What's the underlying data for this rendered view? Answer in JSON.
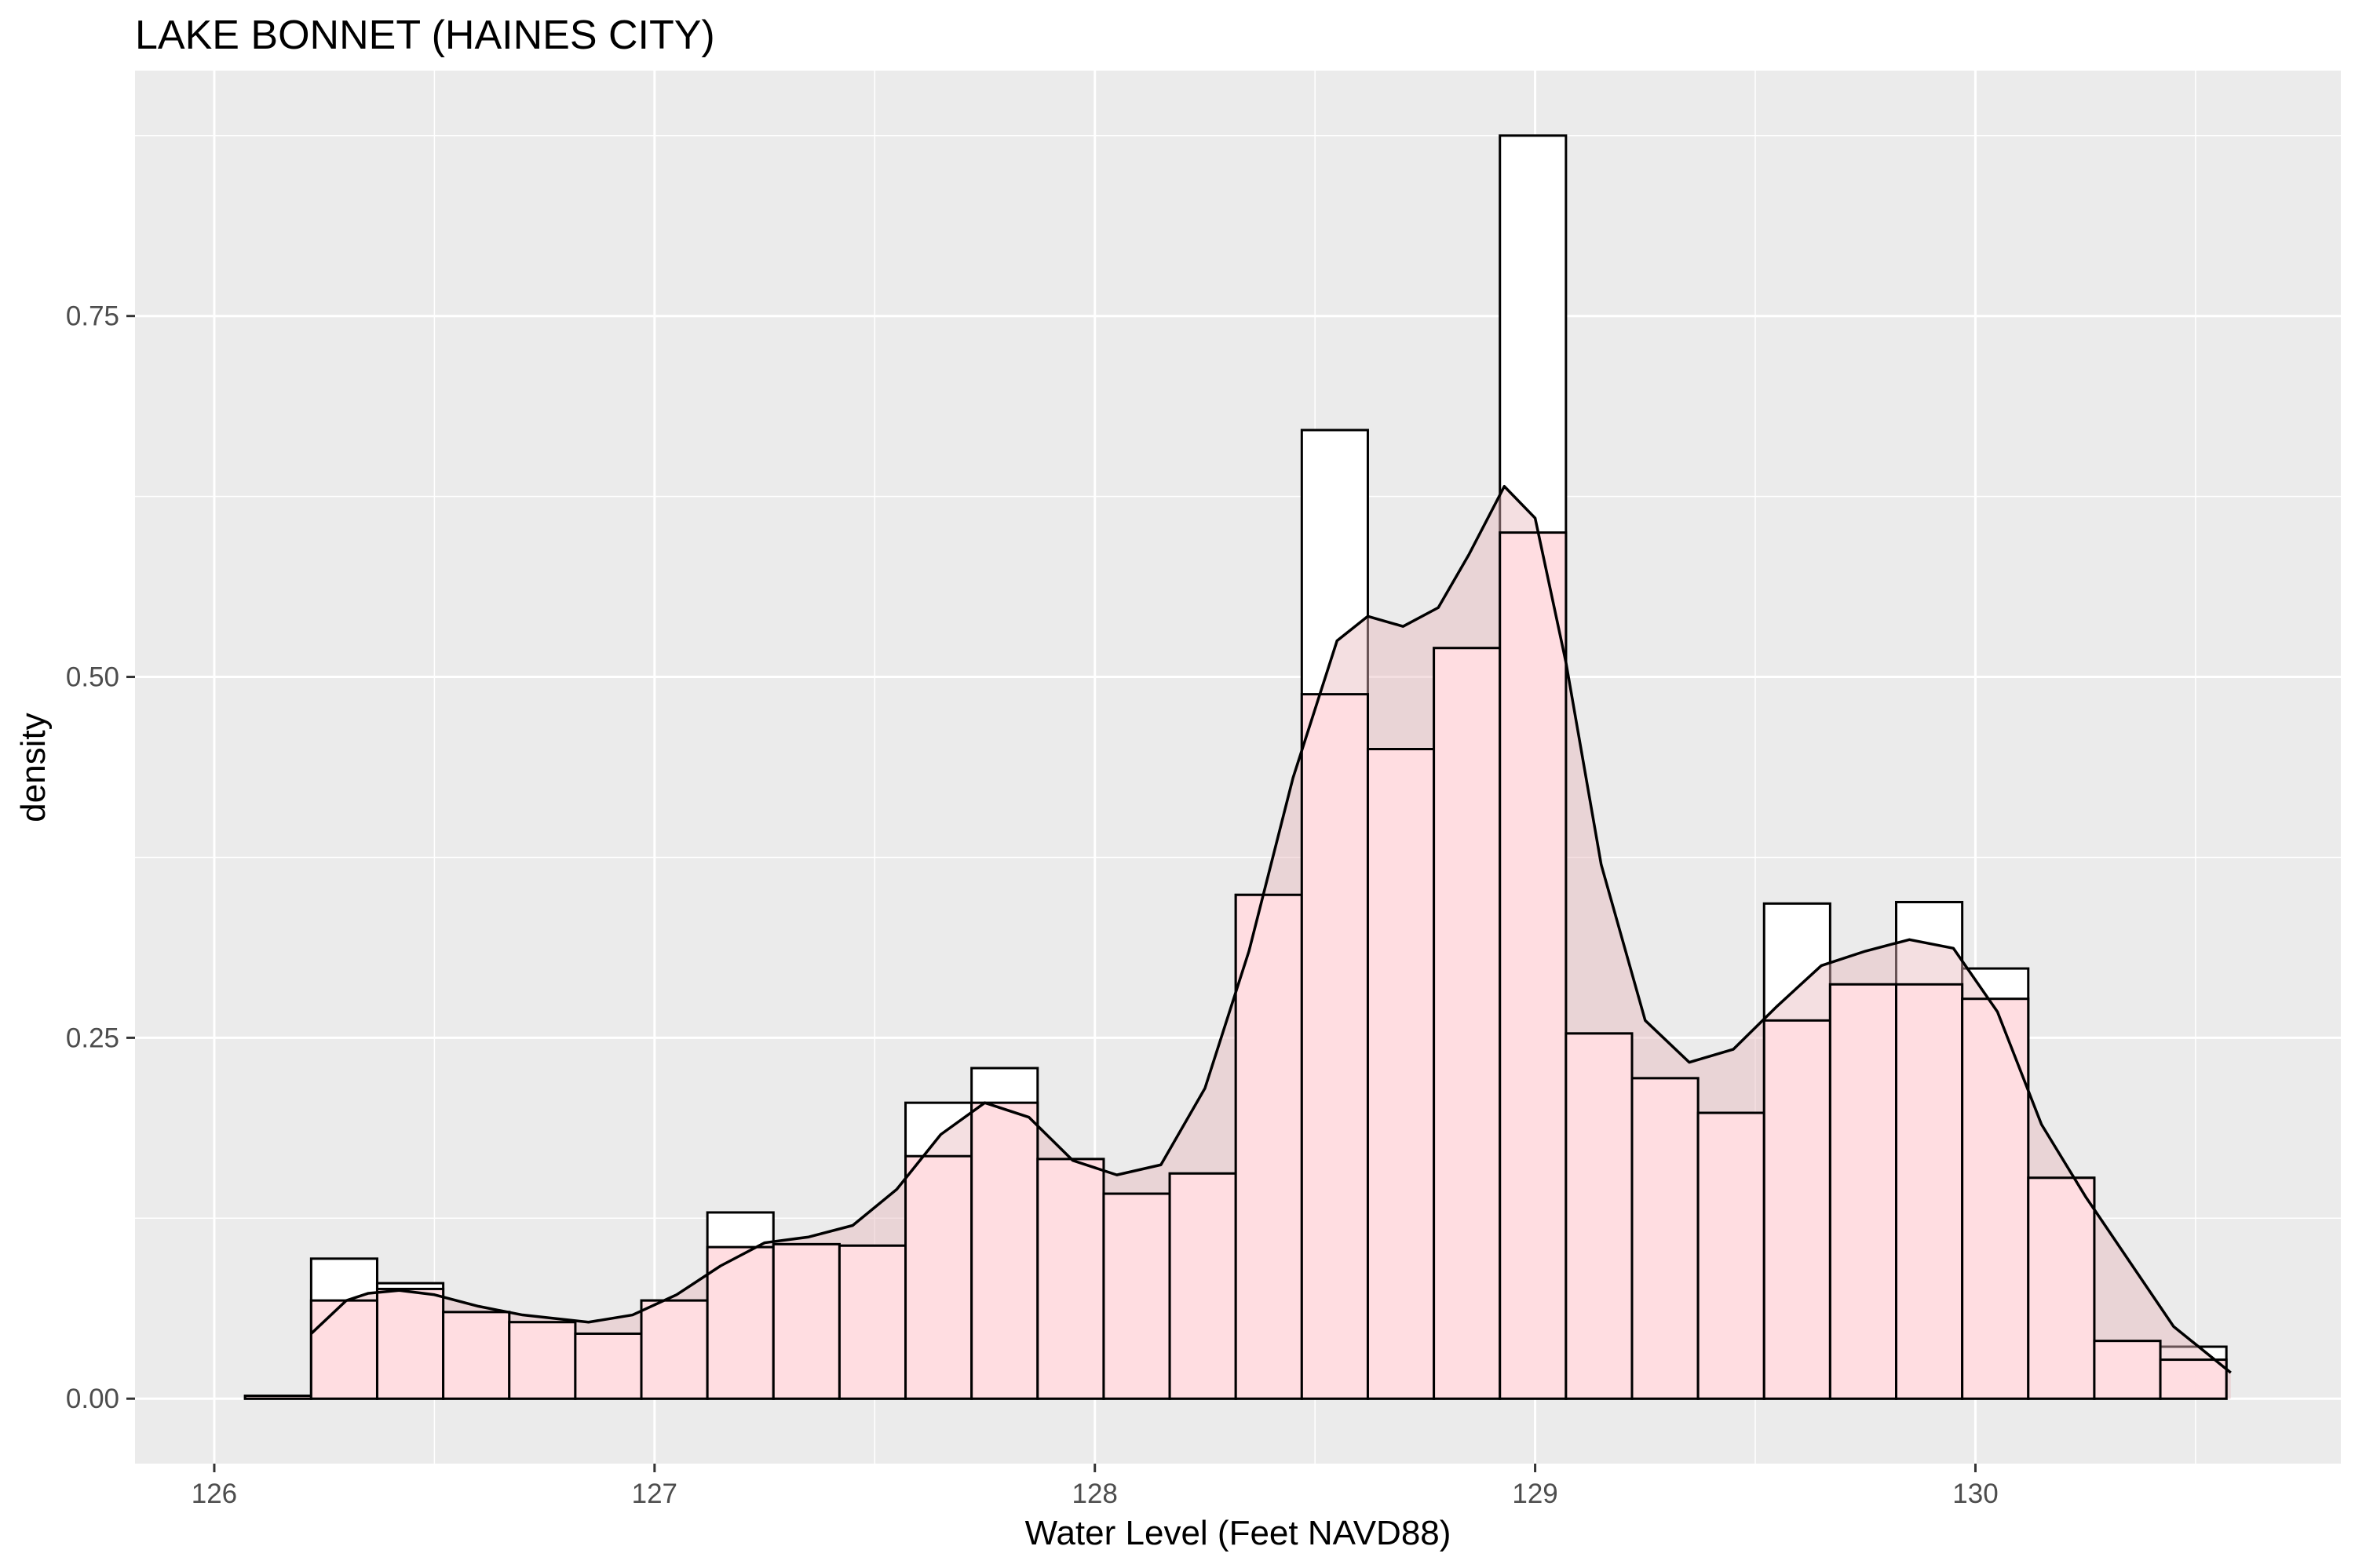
{
  "chart_data": {
    "type": "histogram",
    "title": "LAKE BONNET (HAINES CITY)",
    "xlabel": "Water Level (Feet NAVD88)",
    "ylabel": "density",
    "xlim": [
      125.82,
      130.83
    ],
    "ylim": [
      -0.045,
      0.92
    ],
    "x_ticks": [
      126,
      127,
      128,
      129,
      130
    ],
    "y_ticks": [
      0.0,
      0.25,
      0.5,
      0.75
    ],
    "x_tick_labels": [
      "126",
      "127",
      "128",
      "129",
      "130"
    ],
    "y_tick_labels": [
      "0.00",
      "0.25",
      "0.50",
      "0.75"
    ],
    "grid": true,
    "background": "#ebebeb",
    "bin_width": 0.15,
    "histogram": {
      "bin_start": [
        126.07,
        126.22,
        126.37,
        126.52,
        126.67,
        126.82,
        126.97,
        127.12,
        127.27,
        127.42,
        127.57,
        127.72,
        127.87,
        128.02,
        128.17,
        128.32,
        128.47,
        128.62,
        128.77,
        128.92,
        129.07,
        129.22,
        129.37,
        129.52,
        129.67,
        129.82,
        129.97,
        130.12,
        130.27,
        130.42
      ],
      "density": [
        0.002,
        0.097,
        0.08,
        0.06,
        0.053,
        0.045,
        0.068,
        0.129,
        0.107,
        0.106,
        0.205,
        0.229,
        0.166,
        0.142,
        0.156,
        0.349,
        0.671,
        0.45,
        0.52,
        0.875,
        0.253,
        0.222,
        0.198,
        0.343,
        0.287,
        0.344,
        0.298,
        0.153,
        0.04,
        0.036
      ],
      "fill": "#ffffff",
      "outline": "#000000"
    },
    "histogram_overlay": {
      "bin_start": [
        126.07,
        126.22,
        126.37,
        126.52,
        126.67,
        126.82,
        126.97,
        127.12,
        127.27,
        127.42,
        127.57,
        127.72,
        127.87,
        128.02,
        128.17,
        128.32,
        128.47,
        128.62,
        128.77,
        128.92,
        129.07,
        129.22,
        129.37,
        129.52,
        129.67,
        129.82,
        129.97,
        130.12,
        130.27,
        130.42
      ],
      "density": [
        0.002,
        0.068,
        0.076,
        0.06,
        0.053,
        0.045,
        0.068,
        0.105,
        0.107,
        0.106,
        0.168,
        0.205,
        0.166,
        0.142,
        0.156,
        0.349,
        0.488,
        0.45,
        0.52,
        0.6,
        0.253,
        0.222,
        0.198,
        0.262,
        0.287,
        0.287,
        0.277,
        0.153,
        0.04,
        0.027
      ],
      "fill": "#ffdde1",
      "outline": "#000000"
    },
    "density_curve": {
      "x": [
        126.22,
        126.3,
        126.35,
        126.42,
        126.5,
        126.6,
        126.7,
        126.85,
        126.95,
        127.05,
        127.15,
        127.25,
        127.35,
        127.45,
        127.55,
        127.65,
        127.75,
        127.85,
        127.95,
        128.05,
        128.15,
        128.25,
        128.35,
        128.45,
        128.55,
        128.62,
        128.7,
        128.78,
        128.85,
        128.93,
        129.0,
        129.07,
        129.15,
        129.25,
        129.35,
        129.45,
        129.55,
        129.65,
        129.75,
        129.85,
        129.95,
        130.05,
        130.15,
        130.25,
        130.35,
        130.45,
        130.58
      ],
      "y": [
        0.045,
        0.068,
        0.073,
        0.075,
        0.072,
        0.064,
        0.058,
        0.053,
        0.058,
        0.072,
        0.092,
        0.108,
        0.112,
        0.12,
        0.145,
        0.183,
        0.205,
        0.195,
        0.165,
        0.155,
        0.162,
        0.215,
        0.31,
        0.43,
        0.525,
        0.542,
        0.535,
        0.548,
        0.585,
        0.632,
        0.61,
        0.51,
        0.37,
        0.262,
        0.233,
        0.242,
        0.272,
        0.3,
        0.31,
        0.318,
        0.312,
        0.268,
        0.19,
        0.14,
        0.095,
        0.05,
        0.018
      ],
      "fill": "#e6b8bd",
      "fill_opacity": 0.45,
      "stroke": "#000000"
    }
  }
}
